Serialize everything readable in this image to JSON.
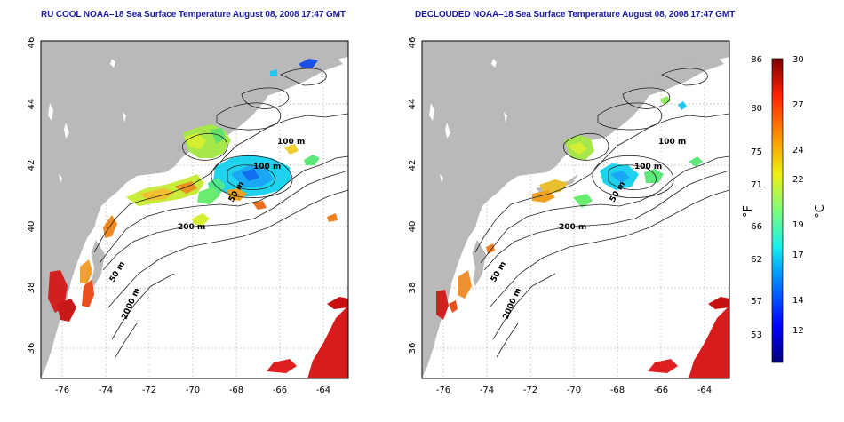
{
  "left_map": {
    "title": "RU COOL NOAA–18 Sea Surface Temperature August 08, 2008 17:47 GMT"
  },
  "right_map": {
    "title": "DECLOUDED NOAA–18 Sea Surface Temperature August 08, 2008 17:47 GMT"
  },
  "axes": {
    "lon_ticks": [
      "-76",
      "-74",
      "-72",
      "-70",
      "-68",
      "-66",
      "-64"
    ],
    "lat_ticks": [
      "36",
      "38",
      "40",
      "42",
      "44",
      "46"
    ]
  },
  "contour_labels": {
    "m100": "100 m",
    "m50": "50 m",
    "m200": "200 m",
    "m50_south": "50 m",
    "m2000": "2000 m"
  },
  "colorbar": {
    "f_ticks": [
      "86",
      "80",
      "75",
      "71",
      "66",
      "62",
      "57",
      "53"
    ],
    "c_ticks": [
      "30",
      "27",
      "24",
      "22",
      "19",
      "17",
      "14",
      "12"
    ],
    "f_label": "°F",
    "c_label": "°C"
  },
  "colors": {
    "land": "#b9b9b9",
    "warm": "#d81b1b",
    "cool": "#1fd3ee",
    "title": "#1a1aa8"
  }
}
